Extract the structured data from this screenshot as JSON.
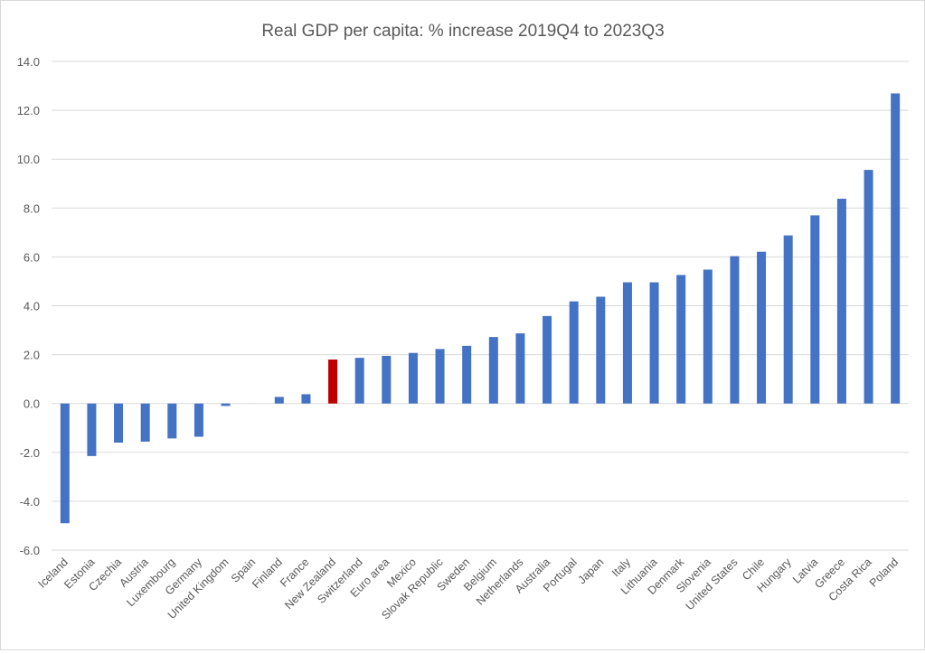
{
  "chart_data": {
    "type": "bar",
    "title": "Real GDP per capita: % increase 2019Q4 to 2023Q3",
    "xlabel": "",
    "ylabel": "",
    "ylim": [
      -6,
      14
    ],
    "yticks": [
      "14.0",
      "12.0",
      "10.0",
      "8.0",
      "6.0",
      "4.0",
      "2.0",
      "0.0",
      "-2.0",
      "-4.0",
      "-6.0"
    ],
    "grid": true,
    "categories": [
      "Iceland",
      "Estonia",
      "Czechia",
      "Austria",
      "Luxembourg",
      "Germany",
      "United Kingdom",
      "Spain",
      "Finland",
      "France",
      "New Zealand",
      "Switzerland",
      "Euro area",
      "Mexico",
      "Slovak Republic",
      "Sweden",
      "Belgium",
      "Netherlands",
      "Australia",
      "Portugal",
      "Japan",
      "Italy",
      "Lithuania",
      "Denmark",
      "Slovenia",
      "United States",
      "Chile",
      "Hungary",
      "Latvia",
      "Greece",
      "Costa Rica",
      "Poland"
    ],
    "values": [
      -4.9,
      -2.15,
      -1.6,
      -1.56,
      -1.43,
      -1.36,
      -0.1,
      0.0,
      0.27,
      0.38,
      1.8,
      1.87,
      1.95,
      2.07,
      2.23,
      2.36,
      2.72,
      2.87,
      3.58,
      4.18,
      4.37,
      4.96,
      4.96,
      5.26,
      5.48,
      6.03,
      6.21,
      6.88,
      7.7,
      8.38,
      9.56,
      12.69
    ],
    "highlight": "New Zealand",
    "colors": {
      "bar": "#4472C4",
      "highlight": "#C00000",
      "grid": "#D9D9D9",
      "text": "#595959"
    }
  }
}
